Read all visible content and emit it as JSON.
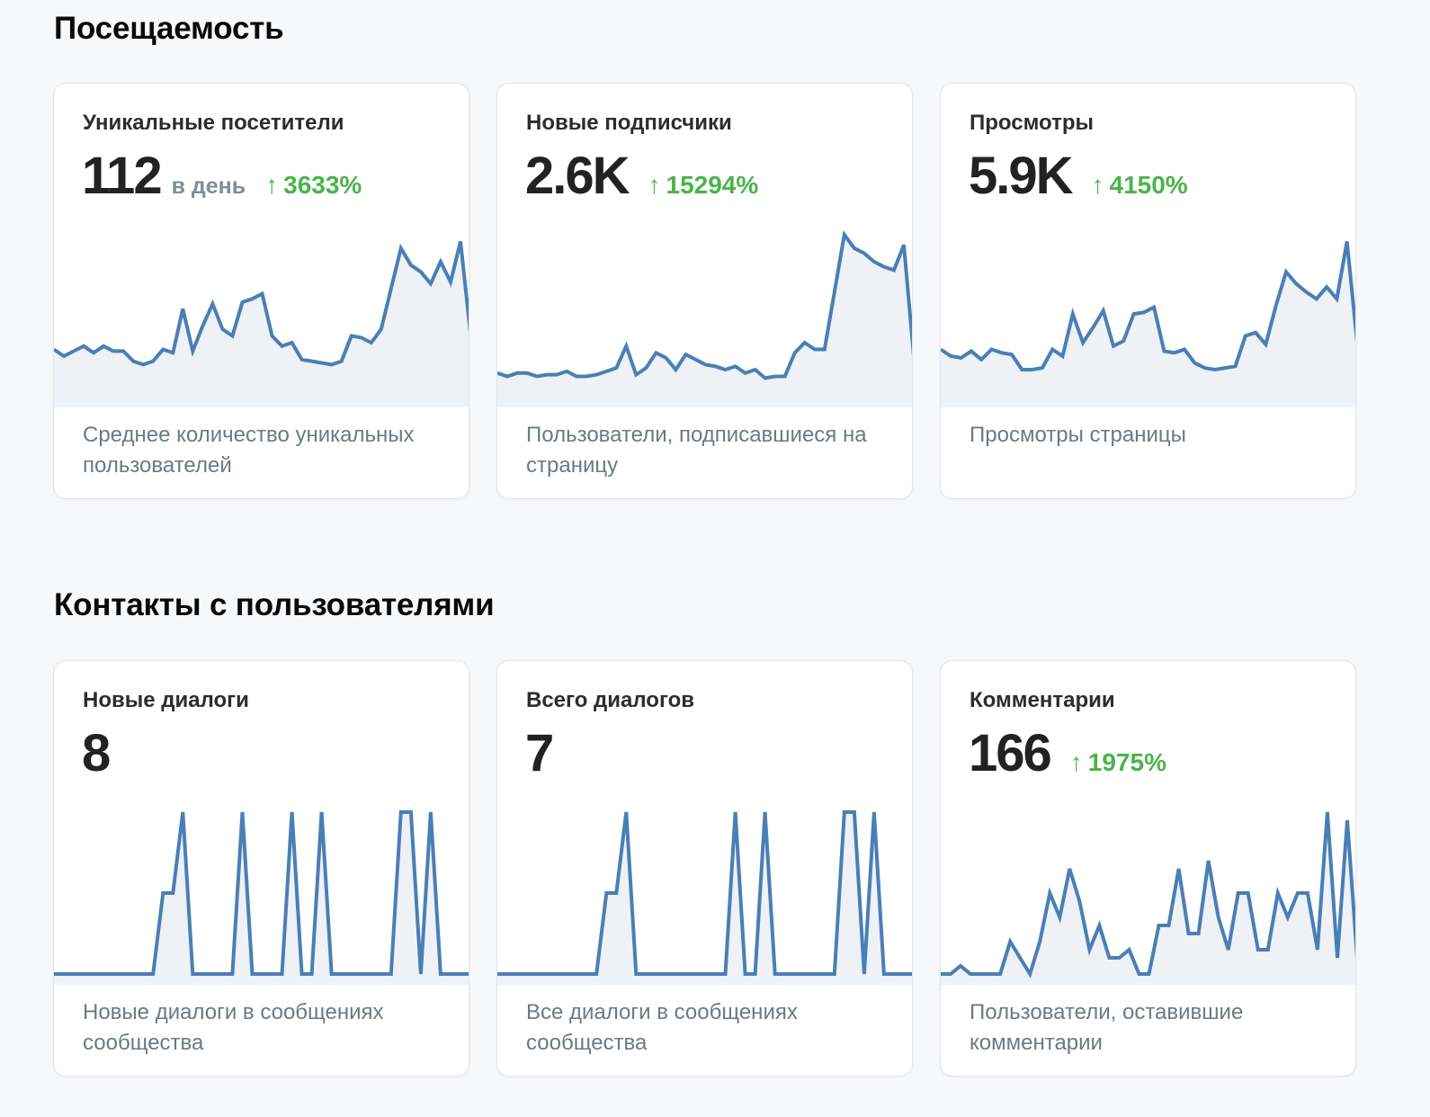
{
  "colors": {
    "line": "#4a7fb5",
    "fill": "#eef1f6",
    "trend_up": "#4bb34b"
  },
  "sections": [
    {
      "title": "Посещаемость",
      "cards": [
        {
          "title": "Уникальные посетители",
          "value": "112",
          "unit": "в день",
          "trend": "3633%",
          "trend_icon": "arrow-up-icon",
          "description": "Среднее количество уникальных пользователей",
          "series": [
            14,
            12,
            13.5,
            15,
            13,
            15,
            13.5,
            13.5,
            10.5,
            9.5,
            10.5,
            14,
            13,
            26,
            13.5,
            21,
            27.5,
            20,
            18,
            28,
            29,
            30.5,
            18,
            15,
            16,
            11,
            10.5,
            10,
            9.5,
            10.5,
            18,
            17.5,
            16,
            20,
            32,
            44,
            39,
            37,
            33.5,
            40,
            34,
            46,
            19
          ]
        },
        {
          "title": "Новые подписчики",
          "value": "2.6K",
          "unit": "",
          "trend": "15294%",
          "trend_icon": "arrow-up-icon",
          "description": "Пользователи, подписавшиеся на страницу",
          "series": [
            7,
            6,
            7,
            7,
            6,
            6.5,
            6.5,
            7.5,
            6,
            6,
            6.5,
            7.5,
            8.5,
            15,
            6.5,
            8.5,
            13,
            11.5,
            8,
            12.5,
            11,
            9.5,
            9,
            8,
            9,
            7,
            8,
            5.5,
            6,
            6,
            13,
            16,
            14,
            14,
            31,
            48,
            44,
            42.5,
            40,
            38.5,
            37.5,
            45,
            12
          ]
        },
        {
          "title": "Просмотры",
          "value": "5.9K",
          "unit": "",
          "trend": "4150%",
          "trend_icon": "arrow-up-icon",
          "description": "Просмотры страницы",
          "series": [
            14,
            12,
            11.5,
            13.5,
            11,
            14,
            13,
            12.5,
            8,
            8,
            8.5,
            14,
            12,
            24.5,
            16,
            20.5,
            25.5,
            15,
            16.5,
            24.5,
            25,
            26.5,
            13.5,
            13,
            14,
            10,
            8.5,
            8,
            8.5,
            9,
            18,
            19,
            15.5,
            27,
            37,
            33.5,
            31,
            29,
            32.5,
            29,
            46,
            16
          ]
        }
      ]
    },
    {
      "title": "Контакты с пользователями",
      "cards": [
        {
          "title": "Новые диалоги",
          "value": "8",
          "unit": "",
          "trend": "",
          "trend_icon": "",
          "description": "Новые диалоги в сообщениях сообщества",
          "series": [
            0,
            0,
            0,
            0,
            0,
            0,
            0,
            0,
            0,
            0,
            0,
            1,
            1,
            2,
            0,
            0,
            0,
            0,
            0,
            2,
            0,
            0,
            0,
            0,
            2,
            0,
            0,
            2,
            0,
            0,
            0,
            0,
            0,
            0,
            0,
            2,
            2,
            0,
            2,
            0,
            0,
            0,
            0
          ]
        },
        {
          "title": "Всего диалогов",
          "value": "7",
          "unit": "",
          "trend": "",
          "trend_icon": "",
          "description": "Все диалоги в сообщениях сообщества",
          "series": [
            0,
            0,
            0,
            0,
            0,
            0,
            0,
            0,
            0,
            0,
            0,
            1,
            1,
            2,
            0,
            0,
            0,
            0,
            0,
            0,
            0,
            0,
            0,
            0,
            2,
            0,
            0,
            2,
            0,
            0,
            0,
            0,
            0,
            0,
            0,
            2,
            2,
            0,
            2,
            0,
            0,
            0,
            0
          ]
        },
        {
          "title": "Комментарии",
          "value": "166",
          "unit": "",
          "trend": "1975%",
          "trend_icon": "arrow-up-icon",
          "description": "Пользователи, оставившие комментарии",
          "series": [
            0,
            0,
            0.5,
            0,
            0,
            0,
            0,
            2,
            1,
            0,
            2,
            5,
            3.5,
            6.5,
            4.5,
            1.5,
            3,
            1,
            1,
            1.5,
            0,
            0,
            3,
            3,
            6.5,
            2.5,
            2.5,
            7,
            3.5,
            1.5,
            5,
            5,
            1.5,
            1.5,
            5,
            3.5,
            5,
            5,
            1.5,
            10,
            1,
            9.5,
            1
          ]
        }
      ]
    }
  ]
}
